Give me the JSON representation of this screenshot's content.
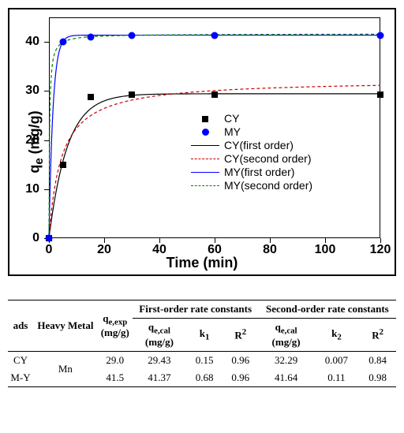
{
  "chart": {
    "type": "scatter+line",
    "x_axis": {
      "label": "Time (min)",
      "min": 0,
      "max": 120,
      "ticks": [
        0,
        20,
        40,
        60,
        80,
        100,
        120
      ]
    },
    "y_axis": {
      "label": "qe (mg/g)",
      "min": 0,
      "max": 45,
      "ticks": [
        0,
        10,
        20,
        30,
        40
      ]
    },
    "background_color": "#ffffff",
    "series": {
      "CY": {
        "marker": "square",
        "color": "#000000",
        "points": [
          [
            0,
            0
          ],
          [
            5,
            15
          ],
          [
            15,
            28.8
          ],
          [
            30,
            29.2
          ],
          [
            60,
            29.2
          ],
          [
            120,
            29.2
          ]
        ]
      },
      "MY": {
        "marker": "circle",
        "color": "#0000ff",
        "points": [
          [
            0,
            0
          ],
          [
            5,
            40
          ],
          [
            15,
            41
          ],
          [
            30,
            41.3
          ],
          [
            60,
            41.3
          ],
          [
            120,
            41.3
          ]
        ]
      }
    },
    "curves": {
      "CY_first": {
        "color": "#000000",
        "dash": "solid",
        "qe": 29.43,
        "k": 0.15
      },
      "CY_second": {
        "color": "#cc0000",
        "dash": "dashed",
        "qe": 32.29,
        "k": 0.007
      },
      "MY_first": {
        "color": "#0000ff",
        "dash": "solid",
        "qe": 41.37,
        "k": 0.68
      },
      "MY_second": {
        "color": "#008800",
        "dash": "dashed",
        "qe": 41.64,
        "k": 0.11
      }
    },
    "legend": {
      "items": [
        {
          "label": "CY"
        },
        {
          "label": "MY"
        },
        {
          "label": "CY(first order)"
        },
        {
          "label": "CY(second order)"
        },
        {
          "label": "MY(first order)"
        },
        {
          "label": "MY(second order)"
        }
      ]
    },
    "styling": {
      "tick_fontsize": 16,
      "tick_fontweight": "bold",
      "axis_label_fontsize": 18,
      "axis_label_fontweight": "bold",
      "legend_fontsize": 14,
      "marker_size": 8
    }
  },
  "table": {
    "headers": {
      "ads": "ads",
      "metal": "Heavy Metal",
      "qe_exp": "qe,exp\n(mg/g)",
      "group1": "First-order rate constants",
      "group2": "Second-order rate constants",
      "qe_cal": "qe,cal\n(mg/g)",
      "k1": "k1",
      "k2": "k2",
      "r2": "R²"
    },
    "metal_value": "Mn",
    "rows": [
      {
        "ads": "CY",
        "qe_exp": "29.0",
        "qe1": "29.43",
        "k1": "0.15",
        "r1": "0.96",
        "qe2": "32.29",
        "k2": "0.007",
        "r2": "0.84"
      },
      {
        "ads": "M-Y",
        "qe_exp": "41.5",
        "qe1": "41.37",
        "k1": "0.68",
        "r1": "0.96",
        "qe2": "41.64",
        "k2": "0.11",
        "r2": "0.98"
      }
    ],
    "styling": {
      "font_family": "Times New Roman",
      "font_size": 13,
      "border_color": "#000000"
    }
  }
}
